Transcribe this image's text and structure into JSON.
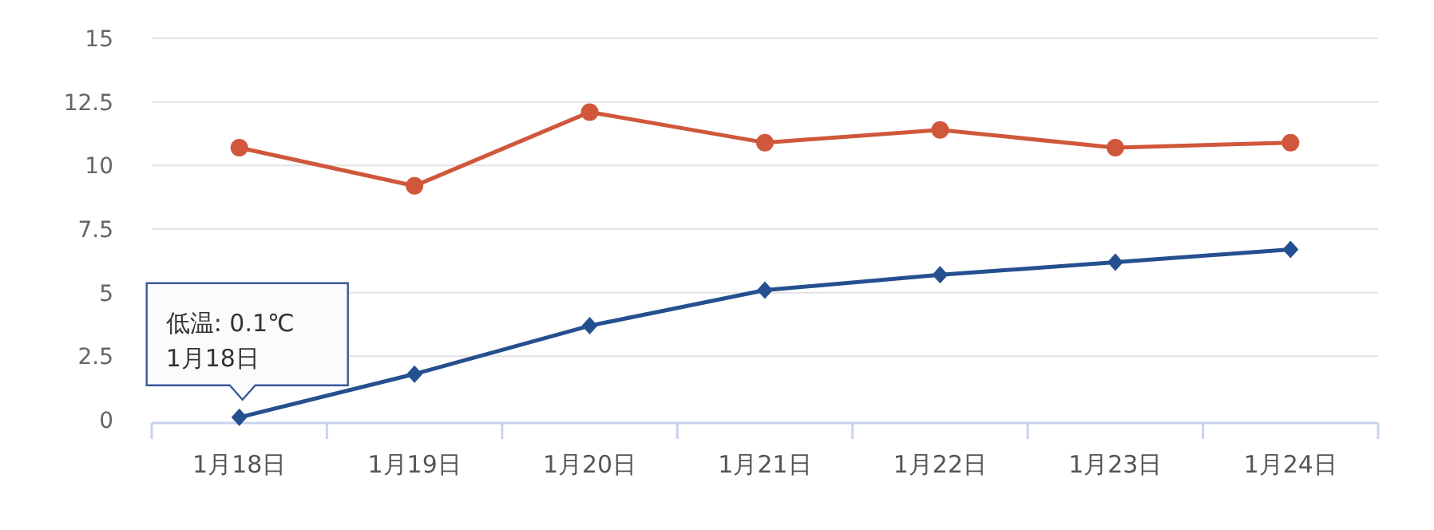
{
  "chart_data": {
    "type": "line",
    "categories": [
      "1月18日",
      "1月19日",
      "1月20日",
      "1月21日",
      "1月22日",
      "1月23日",
      "1月24日"
    ],
    "series": [
      {
        "color": "#d0573b",
        "marker": "circle",
        "values": [
          10.7,
          9.2,
          12.1,
          10.9,
          11.4,
          10.7,
          10.9
        ]
      },
      {
        "color": "#25508f",
        "marker": "diamond",
        "values": [
          0.1,
          1.8,
          3.7,
          5.1,
          5.7,
          6.2,
          6.7
        ]
      }
    ],
    "ylim": [
      0,
      15
    ],
    "yticks": [
      0,
      {
        "value": 2.5,
        "label": "2.5"
      },
      5,
      {
        "value": 7.5,
        "label": "7.5"
      },
      10,
      {
        "value": 12.5,
        "label": "12.5"
      },
      15
    ],
    "grid": "y",
    "line_style": "solid",
    "annotations": [
      {
        "text": "低温: 0.1℃\n1月18日",
        "x": "1月18日",
        "y": 0.1
      }
    ]
  }
}
